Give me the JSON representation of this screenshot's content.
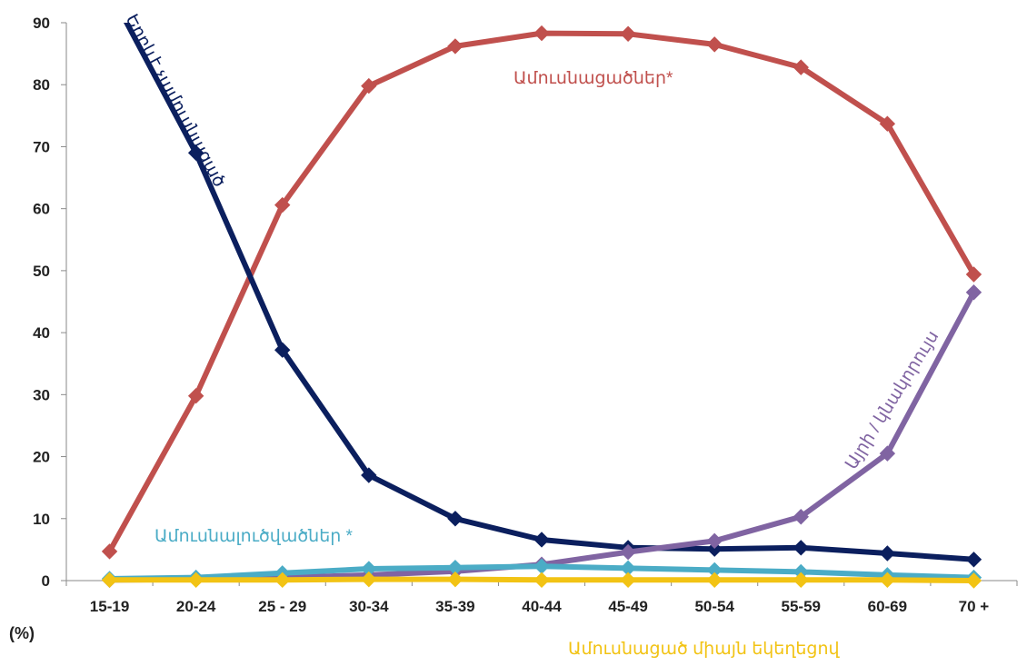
{
  "chart_data": {
    "type": "line",
    "ylabel": "(%)",
    "ylim": [
      0,
      90
    ],
    "yticks": [
      0,
      10,
      20,
      30,
      40,
      50,
      60,
      70,
      80,
      90
    ],
    "grid": false,
    "legend": "inline labels",
    "categories": [
      "15-19",
      "20-24",
      "25 - 29",
      "30-34",
      "35-39",
      "40-44",
      "45-49",
      "50-54",
      "55-59",
      "60-69",
      "70 +"
    ],
    "series": [
      {
        "name": "Երբևէ չամուսնացած",
        "color": "#0b1f5e",
        "values": [
          95.2,
          69,
          37.2,
          17,
          10,
          6.6,
          5.3,
          5.1,
          5.3,
          4.4,
          3.4
        ]
      },
      {
        "name": "Ամուսնացածներ*",
        "color": "#c0504d",
        "values": [
          4.7,
          29.8,
          60.6,
          79.8,
          86.2,
          88.3,
          88.2,
          86.5,
          82.8,
          73.7,
          49.4
        ]
      },
      {
        "name": "Ամուսնալուծվածներ *",
        "color": "#4bacc6",
        "values": [
          0.3,
          0.5,
          1.2,
          1.9,
          2.1,
          2.3,
          2,
          1.7,
          1.4,
          0.9,
          0.5
        ]
      },
      {
        "name": "Այրի / կնակորույս",
        "color": "#8064a2",
        "values": [
          0.1,
          0.2,
          0.5,
          0.9,
          1.5,
          2.6,
          4.6,
          6.4,
          10.3,
          20.5,
          46.5
        ]
      },
      {
        "name": "Ամուսնացած միայն եկեղեցով",
        "color": "#f2c314",
        "values": [
          0.1,
          0.1,
          0.1,
          0.2,
          0.2,
          0.1,
          0.1,
          0.1,
          0.1,
          0.1,
          0
        ]
      }
    ]
  }
}
